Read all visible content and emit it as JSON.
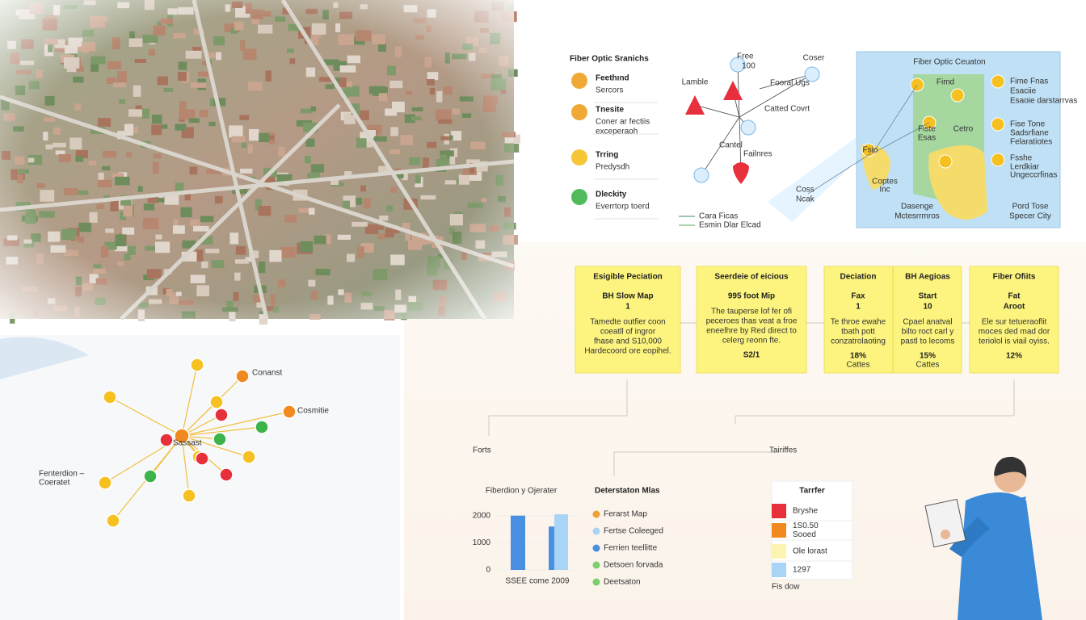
{
  "legend_panel": {
    "title": "Fiber Optic Sranichs",
    "items": [
      {
        "title": "Feethınd",
        "subtitle": [
          "Sercors"
        ],
        "color": "#f0a020"
      },
      {
        "title": "Tnesite",
        "subtitle": [
          "Coner ar fectiis",
          "exceperaoh"
        ],
        "color": "#f0a020"
      },
      {
        "title": "Trring",
        "subtitle": [
          "Predysdh"
        ],
        "color": "#f5c020"
      },
      {
        "title": "Dleckity",
        "subtitle": [
          "Everrtorp toerd"
        ],
        "color": "#3cb44a"
      }
    ]
  },
  "network": {
    "labels": [
      "Free",
      "100",
      "Lamble",
      "Fooral Ugs",
      "Coser",
      "Catted Covrt",
      "Cantel",
      "Failnres",
      "Coss",
      "Ncak"
    ],
    "legend": [
      "Cara Ficas",
      "Esmin Dlar Elcad"
    ]
  },
  "map_panel": {
    "title": "Fiber Optic Ceuaton",
    "labels": [
      "Fimd",
      "Fiste",
      "Esas",
      "Cetro",
      "Fsio",
      "Coptes",
      "Inc",
      "Fime Fnas",
      "Esaciie",
      "Esaoie darstarrvas",
      "Fise Tone",
      "Sadsrfiane",
      "Felaratiotes",
      "Fsshe",
      "Lerdkiar",
      "Ungeccrfinas",
      "Dasenge",
      "Mctesrrmros",
      "Pord Tose",
      "Specer City"
    ]
  },
  "cards": [
    {
      "title": "Esigible Peciation",
      "heads": [
        "BH Slow Map",
        "1"
      ],
      "body": [
        "Tamedte outfier coon",
        "coeatll of ingror",
        "fhase and S10,000",
        "Hardecoord ore eopihel."
      ]
    },
    {
      "title": "Seerdeie of eicious",
      "heads": [
        "995 foot Mip"
      ],
      "body": [
        "The tauperse lof fer ofi",
        "peceroes thas veat a froe",
        "eneelhre by Red direct to",
        "celerg reonn fte."
      ],
      "foot": [
        "S2/1"
      ]
    },
    {
      "title": "Deciation",
      "heads": [
        "Fax",
        "1"
      ],
      "body": [
        "Te throe ewahe",
        "tbath pott",
        "conzatrolaoting"
      ],
      "foot": [
        "18%",
        "Cattes"
      ]
    },
    {
      "title": "BH Aegioas",
      "heads": [
        "Start",
        "10"
      ],
      "body": [
        "Cpael anatval",
        "bilto roct carl y",
        "pastl to lecoms"
      ],
      "foot": [
        "15%",
        "Cattes"
      ]
    },
    {
      "title": "Fiber Ofiits",
      "heads": [
        "Fat",
        "Aroot"
      ],
      "body": [
        "Ele sur tetueraoflit",
        "moces ded mad dor",
        "teriolol is viail oyiss."
      ],
      "foot": [
        "12%"
      ]
    }
  ],
  "left_map": {
    "labels": [
      "Conanst",
      "Cosmitie",
      "Sassast",
      "Fenterdion –",
      "Coeratet"
    ]
  },
  "sections": [
    "Forts",
    "Tairiffes"
  ],
  "bar_chart": {
    "type": "bar",
    "title": "Fiberdion y Ojerater",
    "xlabel": "SSEE come 2009",
    "values": [
      2000,
      1600,
      2050
    ],
    "colors": [
      "#4a8fe0",
      "#4a8fe0",
      "#a8d4f5"
    ],
    "ylim": [
      0,
      2200
    ],
    "yticks": [
      0,
      1000,
      2000
    ]
  },
  "legend_list": {
    "title": "Deterstaton Mlas",
    "items": [
      {
        "label": "Ferarst Map",
        "color": "#f0a030"
      },
      {
        "label": "Fertse Coleeged",
        "color": "#a8d4f5"
      },
      {
        "label": "Ferrien teellitte",
        "color": "#4a8fe0"
      },
      {
        "label": "Detsoen forvada",
        "color": "#7ccf6a"
      },
      {
        "label": "Deetsaton",
        "color": "#7ccf6a"
      }
    ]
  },
  "tariff_table": {
    "title": "Tarrfer",
    "rows": [
      {
        "label": [
          "Bryshe"
        ],
        "color": "#e8303c"
      },
      {
        "label": [
          "1S0.50",
          "Sooed"
        ],
        "color": "#f08a20"
      },
      {
        "label": [
          "Ole lorast"
        ],
        "color": "#fcf4b0"
      },
      {
        "label": [
          "1297"
        ],
        "color": "#a8d4f5"
      }
    ],
    "footer": "Fis dow"
  }
}
